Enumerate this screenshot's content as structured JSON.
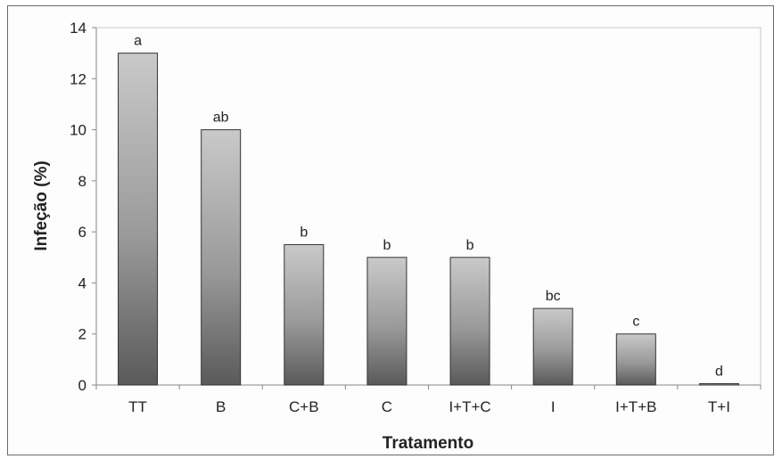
{
  "chart_data": {
    "type": "bar",
    "title": "",
    "xlabel": "Tratamento",
    "ylabel": "Infeção (%)",
    "ylim": [
      0,
      14
    ],
    "yticks": [
      0,
      2,
      4,
      6,
      8,
      10,
      12,
      14
    ],
    "grid": false,
    "categories": [
      "TT",
      "B",
      "C+B",
      "C",
      "I+T+C",
      "I",
      "I+T+B",
      "T+I"
    ],
    "values": [
      13,
      10,
      5.5,
      5,
      5,
      3,
      2,
      0.05
    ],
    "bar_labels": [
      "a",
      "ab",
      "b",
      "b",
      "b",
      "bc",
      "c",
      "d"
    ],
    "colors": {
      "bar_top": "#c9c9c9",
      "bar_bottom": "#5a5a5a",
      "axis": "#888888"
    }
  }
}
